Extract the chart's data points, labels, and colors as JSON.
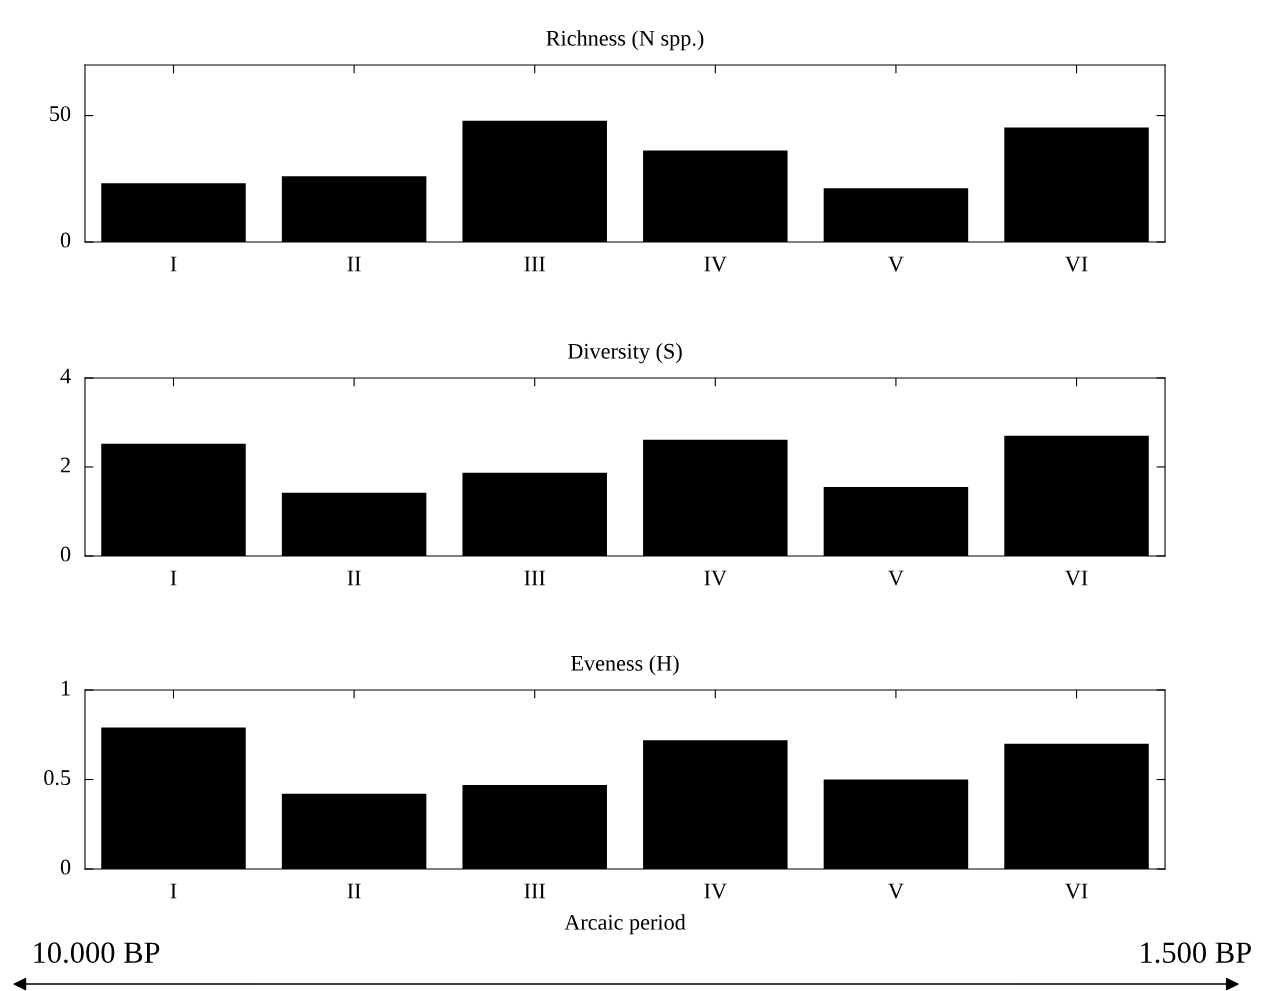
{
  "chart_data": [
    {
      "type": "bar",
      "title": "Richness (N spp.)",
      "categories": [
        "I",
        "II",
        "III",
        "IV",
        "V",
        "VI"
      ],
      "values": [
        23.2,
        26,
        48,
        36.2,
        21.3,
        45.3
      ],
      "color": "#000000",
      "ylim": [
        0,
        70
      ],
      "yticks": [
        0,
        50
      ],
      "grid": false
    },
    {
      "type": "bar",
      "title": "Diversity (S)",
      "categories": [
        "I",
        "II",
        "III",
        "IV",
        "V",
        "VI"
      ],
      "values": [
        2.52,
        1.42,
        1.87,
        2.61,
        1.55,
        2.7
      ],
      "color": "#000000",
      "ylim": [
        0,
        4
      ],
      "yticks": [
        0,
        2,
        4
      ],
      "grid": false
    },
    {
      "type": "bar",
      "title": "Eveness (H)",
      "xlabel": "Arcaic period",
      "categories": [
        "I",
        "II",
        "III",
        "IV",
        "V",
        "VI"
      ],
      "values": [
        0.79,
        0.42,
        0.47,
        0.72,
        0.5,
        0.7
      ],
      "color": "#000000",
      "ylim": [
        0,
        1
      ],
      "yticks": [
        0,
        0.5,
        1
      ],
      "grid": false,
      "annotations": [
        "10.000 BP",
        "1.500 BP"
      ]
    }
  ]
}
